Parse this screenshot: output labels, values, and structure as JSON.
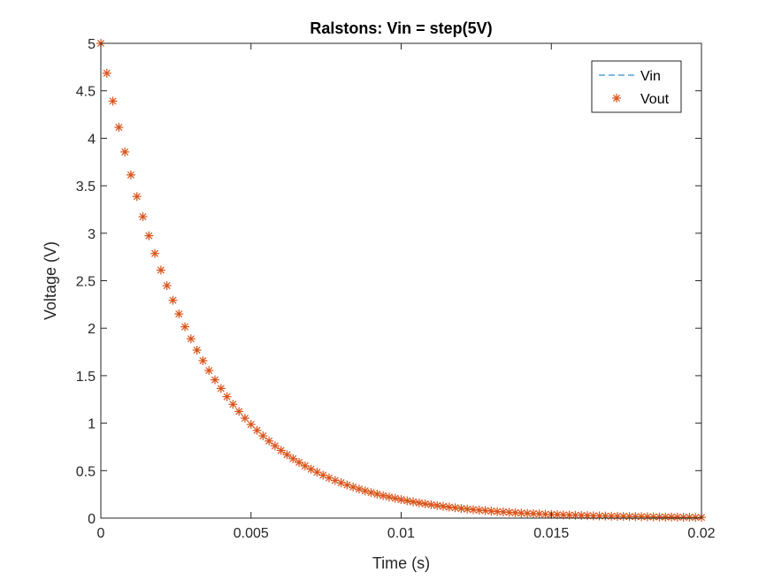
{
  "chart_data": {
    "type": "line",
    "title": "Ralstons: Vin = step(5V)",
    "xlabel": "Time (s)",
    "ylabel": "Voltage (V)",
    "xlim": [
      0,
      0.02
    ],
    "ylim": [
      0,
      5
    ],
    "x_ticks": [
      0,
      0.005,
      0.01,
      0.015,
      0.02
    ],
    "x_tick_labels": [
      "0",
      "0.005",
      "0.01",
      "0.015",
      "0.02"
    ],
    "y_ticks": [
      0,
      0.5,
      1,
      1.5,
      2,
      2.5,
      3,
      3.5,
      4,
      4.5,
      5
    ],
    "y_tick_labels": [
      "0",
      "0.5",
      "1",
      "1.5",
      "2",
      "2.5",
      "3",
      "3.5",
      "4",
      "4.5",
      "5"
    ],
    "grid": false,
    "legend_position": "top-right",
    "series": [
      {
        "name": "Vin",
        "style": "dashed-line",
        "color": "#0072BD",
        "x": [
          0,
          0.02
        ],
        "y": [
          5,
          5
        ]
      },
      {
        "name": "Vout",
        "style": "asterisk-markers",
        "color": "#D95319",
        "x": [
          0,
          0.0002,
          0.0004,
          0.0006,
          0.0008,
          0.001,
          0.0012,
          0.0014,
          0.0016,
          0.0018,
          0.002,
          0.0022,
          0.0024,
          0.0026,
          0.0028,
          0.003,
          0.0032,
          0.0034,
          0.0036,
          0.0038,
          0.004,
          0.0042,
          0.0044,
          0.0046,
          0.0048,
          0.005,
          0.0052,
          0.0054,
          0.0056,
          0.0058,
          0.006,
          0.0062,
          0.0064,
          0.0066,
          0.0068,
          0.007,
          0.0072,
          0.0074,
          0.0076,
          0.0078,
          0.008,
          0.0082,
          0.0084,
          0.0086,
          0.0088,
          0.009,
          0.0092,
          0.0094,
          0.0096,
          0.0098,
          0.01,
          0.0102,
          0.0104,
          0.0106,
          0.0108,
          0.011,
          0.0112,
          0.0114,
          0.0116,
          0.0118,
          0.012,
          0.0122,
          0.0124,
          0.0126,
          0.0128,
          0.013,
          0.0132,
          0.0134,
          0.0136,
          0.0138,
          0.014,
          0.0142,
          0.0144,
          0.0146,
          0.0148,
          0.015,
          0.0152,
          0.0154,
          0.0156,
          0.0158,
          0.016,
          0.0162,
          0.0164,
          0.0166,
          0.0168,
          0.017,
          0.0172,
          0.0174,
          0.0176,
          0.0178,
          0.018,
          0.0182,
          0.0184,
          0.0186,
          0.0188,
          0.019,
          0.0192,
          0.0194,
          0.0196,
          0.0198,
          0.02
        ],
        "y": [
          5,
          4.685,
          4.391,
          4.115,
          3.856,
          3.614,
          3.387,
          3.174,
          2.974,
          2.787,
          2.612,
          2.448,
          2.294,
          2.15,
          2.015,
          1.888,
          1.769,
          1.658,
          1.554,
          1.456,
          1.365,
          1.279,
          1.198,
          1.123,
          1.052,
          0.986,
          0.924,
          0.866,
          0.812,
          0.761,
          0.713,
          0.668,
          0.626,
          0.587,
          0.55,
          0.515,
          0.483,
          0.452,
          0.424,
          0.397,
          0.372,
          0.349,
          0.327,
          0.306,
          0.287,
          0.269,
          0.252,
          0.236,
          0.222,
          0.208,
          0.195,
          0.182,
          0.171,
          0.16,
          0.15,
          0.141,
          0.132,
          0.124,
          0.116,
          0.109,
          0.102,
          0.095,
          0.089,
          0.084,
          0.079,
          0.074,
          0.069,
          0.065,
          0.061,
          0.057,
          0.053,
          0.05,
          0.047,
          0.044,
          0.041,
          0.039,
          0.036,
          0.034,
          0.032,
          0.03,
          0.028,
          0.026,
          0.024,
          0.023,
          0.022,
          0.02,
          0.019,
          0.018,
          0.017,
          0.016,
          0.015,
          0.014,
          0.013,
          0.012,
          0.011,
          0.011,
          0.01,
          0.009,
          0.009,
          0.008,
          0.008
        ]
      }
    ]
  }
}
